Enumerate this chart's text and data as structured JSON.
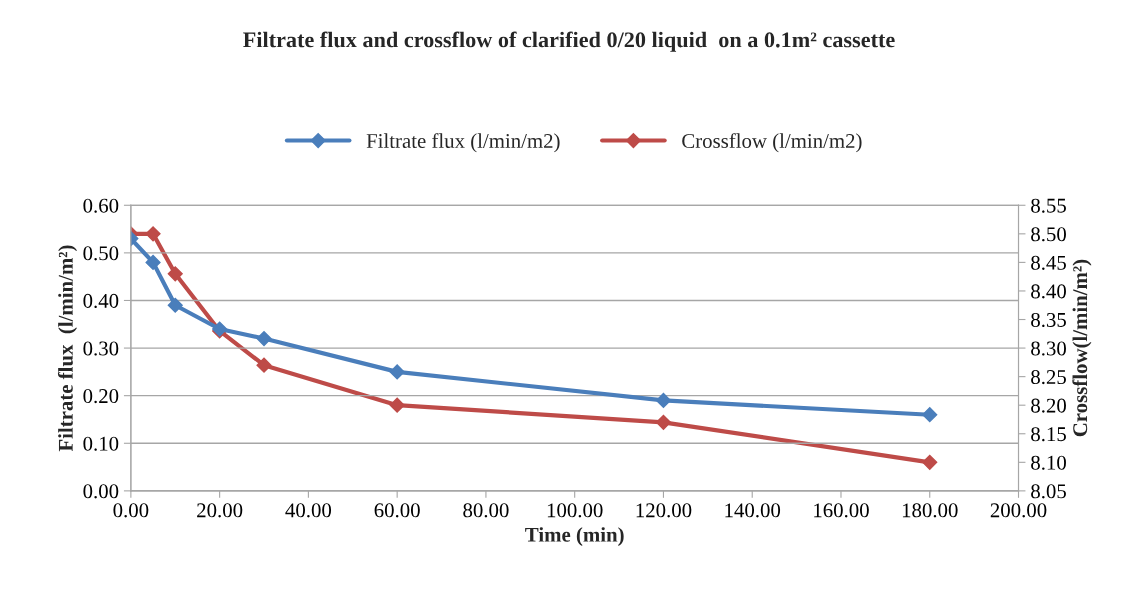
{
  "chart_data": {
    "type": "line",
    "title": "Filtrate flux and crossflow of clarified 0/20 liquid  on a 0.1m² cassette",
    "xlabel": "Time (min)",
    "ylabel": "Filtrate flux  (l/min/m²)",
    "y2label": "Crossflow(l/min/m²)",
    "x": [
      0,
      5,
      10,
      20,
      30,
      60,
      120,
      180
    ],
    "series": [
      {
        "name": "Filtrate flux (l/min/m2)",
        "color": "#4a7ebb",
        "values": [
          0.53,
          0.48,
          0.39,
          0.34,
          0.32,
          0.25,
          0.19,
          0.16
        ]
      },
      {
        "name": "Crossflow (l/min/m2)",
        "color": "#be4b48",
        "axis": "y2",
        "values": [
          8.5,
          8.5,
          8.43,
          8.33,
          8.27,
          8.2,
          8.17,
          8.1
        ]
      }
    ],
    "xlim": [
      0,
      200
    ],
    "xticks": [
      {
        "value": 0,
        "label": "0.00"
      },
      {
        "value": 20,
        "label": "20.00"
      },
      {
        "value": 40,
        "label": "40.00"
      },
      {
        "value": 60,
        "label": "60.00"
      },
      {
        "value": 80,
        "label": "80.00"
      },
      {
        "value": 100,
        "label": "100.00"
      },
      {
        "value": 120,
        "label": "120.00"
      },
      {
        "value": 140,
        "label": "140.00"
      },
      {
        "value": 160,
        "label": "160.00"
      },
      {
        "value": 180,
        "label": "180.00"
      },
      {
        "value": 200,
        "label": "200.00"
      }
    ],
    "ylim": [
      0,
      0.6
    ],
    "yticks": [
      {
        "value": 0,
        "label": "0.00"
      },
      {
        "value": 0.1,
        "label": "0.10"
      },
      {
        "value": 0.2,
        "label": "0.20"
      },
      {
        "value": 0.3,
        "label": "0.30"
      },
      {
        "value": 0.4,
        "label": "0.40"
      },
      {
        "value": 0.5,
        "label": "0.50"
      },
      {
        "value": 0.6,
        "label": "0.60"
      }
    ],
    "y2lim": [
      8.05,
      8.55
    ],
    "y2ticks": [
      {
        "value": 8.05,
        "label": "8.05"
      },
      {
        "value": 8.1,
        "label": "8.10"
      },
      8.15,
      {
        "value": 8.2,
        "label": "8.20"
      },
      8.25,
      {
        "value": 8.3,
        "label": "8.30"
      },
      8.35,
      {
        "value": 8.4,
        "label": "8.40"
      },
      8.45,
      {
        "value": 8.5,
        "label": "8.50"
      },
      8.55
    ],
    "grid": "y",
    "legend": "top",
    "marker": "diamond",
    "line_style": "solid"
  }
}
